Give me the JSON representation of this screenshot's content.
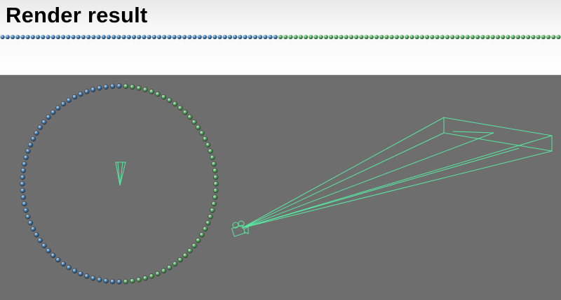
{
  "header": {
    "title": "Render result"
  },
  "render_strip": {
    "bead_count": 111,
    "blue_count": 55,
    "colors": {
      "blue": "#4f86b8",
      "green": "#5fae6a"
    }
  },
  "viewport": {
    "background": "#6e6e6e",
    "wire_color": "#58e8a0",
    "ring": {
      "bead_count": 92,
      "colors": {
        "blue": "#4f86b8",
        "green": "#5fae6a"
      }
    }
  }
}
